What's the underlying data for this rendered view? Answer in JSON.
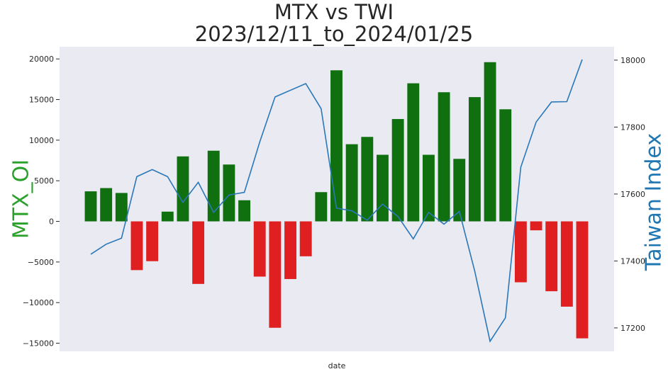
{
  "chart_data": {
    "type": "bar",
    "title": [
      "MTX vs TWI",
      "2023/12/11_to_2024/01/25"
    ],
    "xlabel": "date",
    "ylabel_left": "MTX_OI",
    "ylabel_right": "Taiwan Index",
    "ylim_left": [
      -16000,
      21500
    ],
    "ylim_right": [
      17130,
      18040
    ],
    "yticks_left": [
      -15000,
      -10000,
      -5000,
      0,
      5000,
      10000,
      15000,
      20000
    ],
    "yticks_right": [
      17200,
      17400,
      17600,
      17800,
      18000
    ],
    "grid": false,
    "series": [
      {
        "name": "MTX_OI",
        "kind": "bar",
        "values": [
          3700,
          4100,
          3500,
          -6000,
          -4900,
          1200,
          8000,
          -7700,
          8700,
          7000,
          2600,
          -6800,
          -13100,
          -7100,
          -4300,
          3600,
          18600,
          9500,
          10400,
          8200,
          12600,
          17000,
          8200,
          15900,
          7700,
          15300,
          19600,
          13800,
          -7500,
          -1100,
          -8600,
          -10500,
          -14400
        ]
      },
      {
        "name": "Taiwan Index",
        "kind": "line",
        "values": [
          17420,
          17450,
          17468,
          17652,
          17673,
          17652,
          17575,
          17635,
          17545,
          17597,
          17605,
          17755,
          17890,
          17910,
          17930,
          17855,
          17558,
          17550,
          17522,
          17570,
          17533,
          17466,
          17545,
          17510,
          17548,
          17370,
          17160,
          17230,
          17680,
          17815,
          17875,
          17876,
          18002
        ]
      }
    ],
    "colors": {
      "positive_bar": "#107010",
      "negative_bar": "#e02020",
      "line": "#2a78b8",
      "left_label": "#2ca02c",
      "right_label": "#1f77b4",
      "plot_background": "#eaeaf2"
    }
  }
}
